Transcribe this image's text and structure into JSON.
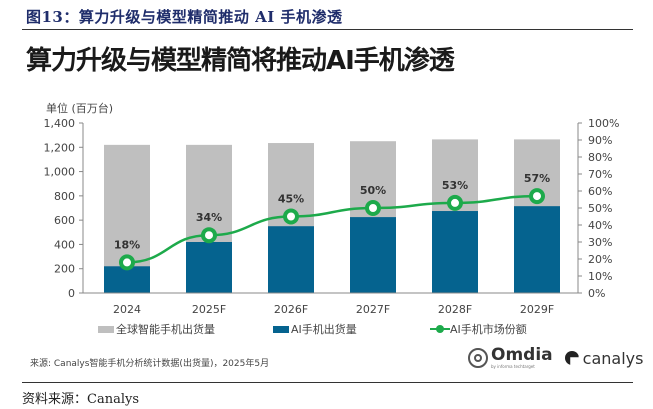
{
  "figure_caption": "图13：算力升级与模型精简推动 AI 手机渗透",
  "source_note": "来源: Canalys智能手机分析统计数据(出货量)，2025年5月",
  "footer_source": "资料来源：Canalys",
  "logos": {
    "omdia": "Omdia",
    "omdia_sub": "by informa techtarget",
    "canalys": "canalys"
  },
  "colors": {
    "global": "#BFBFBF",
    "ai": "#05638F",
    "share": "#1DAA4B",
    "caption": "#1F2D6B"
  },
  "chart_data": {
    "type": "bar",
    "title": "算力升级与模型精简将推动AI手机渗透",
    "unit_label": "单位 (百万台)",
    "categories": [
      "2024",
      "2025F",
      "2026F",
      "2027F",
      "2028F",
      "2029F"
    ],
    "series": [
      {
        "name": "全球智能手机出货量",
        "type": "bar",
        "axis": "left",
        "values": [
          1220,
          1220,
          1235,
          1250,
          1265,
          1265
        ]
      },
      {
        "name": "AI手机出货量",
        "type": "bar",
        "axis": "left",
        "values": [
          220,
          420,
          550,
          625,
          675,
          715
        ]
      },
      {
        "name": "AI手机市场份额",
        "type": "line",
        "axis": "right",
        "values": [
          18,
          34,
          45,
          50,
          53,
          57
        ],
        "labels": [
          "18%",
          "34%",
          "45%",
          "50%",
          "53%",
          "57%"
        ]
      }
    ],
    "y_left": {
      "range": [
        0,
        1400
      ],
      "ticks": [
        "0",
        "200",
        "400",
        "600",
        "800",
        "1,000",
        "1,200",
        "1,400"
      ]
    },
    "y_right": {
      "range": [
        0,
        100
      ],
      "ticks": [
        "0%",
        "10%",
        "20%",
        "30%",
        "40%",
        "50%",
        "60%",
        "70%",
        "80%",
        "90%",
        "100%"
      ]
    },
    "grid": false,
    "legend": "bottom"
  }
}
